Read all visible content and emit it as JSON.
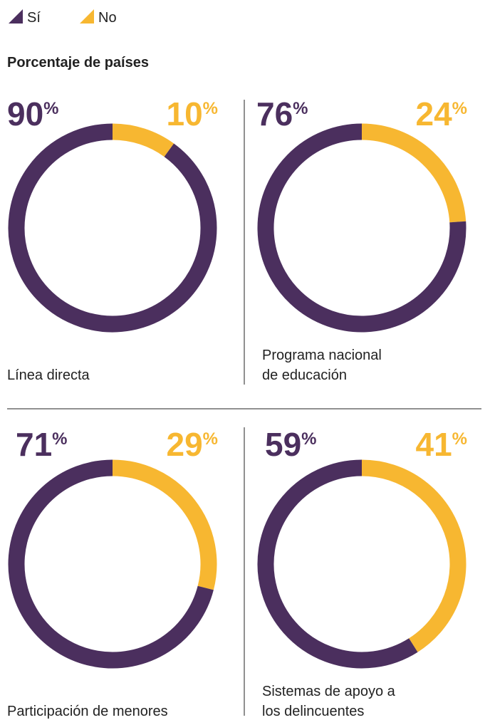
{
  "chart_data": {
    "type": "donut",
    "title": "Porcentaje de países",
    "unit": "%",
    "series": [
      {
        "name": "Sí",
        "color": "#4b2f5e"
      },
      {
        "name": "No",
        "color": "#f7b731"
      }
    ],
    "panels": [
      {
        "label": [
          "Línea directa"
        ],
        "values": [
          90,
          10
        ]
      },
      {
        "label": [
          "Programa nacional",
          "de educación"
        ],
        "values": [
          76,
          24
        ]
      },
      {
        "label": [
          "Participación de menores"
        ],
        "values": [
          71,
          29
        ]
      },
      {
        "label": [
          "Sistemas de apoyo a",
          "los delincuentes"
        ],
        "values": [
          59,
          41
        ]
      }
    ]
  }
}
